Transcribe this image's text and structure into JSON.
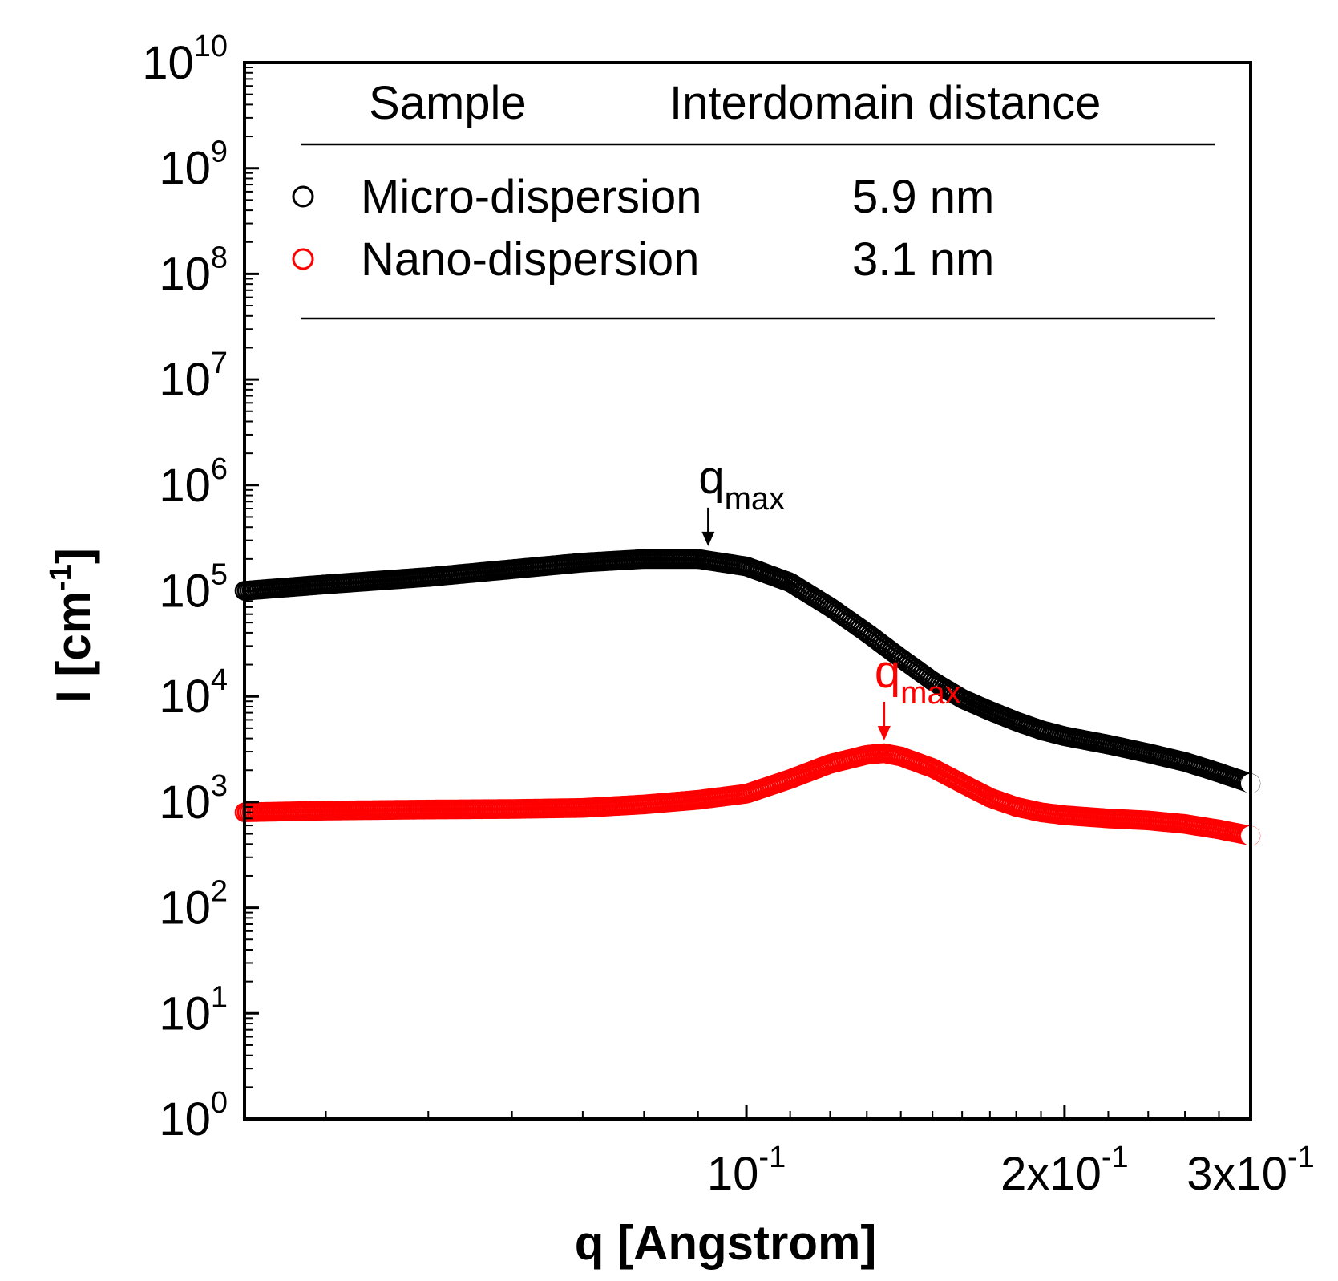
{
  "chart_data": {
    "type": "scatter",
    "xlabel": "q [Angstrom]",
    "ylabel_main": "I [cm",
    "ylabel_sup": "-1",
    "ylabel_close": "]",
    "xscale": "log",
    "yscale": "log",
    "xlim": [
      0.0335,
      0.3
    ],
    "ylim": [
      1,
      10000000000
    ],
    "x_ticks": [
      {
        "value": 0.1,
        "mantissa": "",
        "base": "10",
        "exp": "-1"
      },
      {
        "value": 0.2,
        "mantissa": "2x",
        "base": "10",
        "exp": "-1"
      },
      {
        "value": 0.3,
        "mantissa": "3x",
        "base": "10",
        "exp": "-1"
      }
    ],
    "y_ticks": [
      {
        "value": 1,
        "base": "10",
        "exp": "0"
      },
      {
        "value": 10,
        "base": "10",
        "exp": "1"
      },
      {
        "value": 100,
        "base": "10",
        "exp": "2"
      },
      {
        "value": 1000,
        "base": "10",
        "exp": "3"
      },
      {
        "value": 10000,
        "base": "10",
        "exp": "4"
      },
      {
        "value": 100000,
        "base": "10",
        "exp": "5"
      },
      {
        "value": 1000000,
        "base": "10",
        "exp": "6"
      },
      {
        "value": 10000000,
        "base": "10",
        "exp": "7"
      },
      {
        "value": 100000000,
        "base": "10",
        "exp": "8"
      },
      {
        "value": 1000000000,
        "base": "10",
        "exp": "9"
      },
      {
        "value": 10000000000,
        "base": "10",
        "exp": "10"
      }
    ],
    "legend": {
      "position": "top",
      "header_sample": "Sample",
      "header_distance": "Interdomain distance"
    },
    "series": [
      {
        "name": "Micro-dispersion",
        "distance": "5.9 nm",
        "color": "#000000",
        "marker": "open-circle",
        "points": [
          [
            0.0335,
            100000
          ],
          [
            0.04,
            115000
          ],
          [
            0.05,
            135000
          ],
          [
            0.06,
            160000
          ],
          [
            0.07,
            185000
          ],
          [
            0.08,
            200000
          ],
          [
            0.09,
            200000
          ],
          [
            0.1,
            170000
          ],
          [
            0.11,
            120000
          ],
          [
            0.12,
            70000
          ],
          [
            0.13,
            40000
          ],
          [
            0.14,
            23000
          ],
          [
            0.15,
            14000
          ],
          [
            0.16,
            9500
          ],
          [
            0.17,
            7300
          ],
          [
            0.18,
            5800
          ],
          [
            0.19,
            4800
          ],
          [
            0.2,
            4200
          ],
          [
            0.22,
            3500
          ],
          [
            0.24,
            2900
          ],
          [
            0.26,
            2400
          ],
          [
            0.28,
            1900
          ],
          [
            0.3,
            1500
          ]
        ],
        "annotation": {
          "x": 0.092,
          "y": 200000,
          "label": "q",
          "sub": "max"
        }
      },
      {
        "name": "Nano-dispersion",
        "distance": "3.1 nm",
        "color": "#ff0000",
        "marker": "open-circle",
        "points": [
          [
            0.0335,
            800
          ],
          [
            0.04,
            830
          ],
          [
            0.05,
            850
          ],
          [
            0.06,
            860
          ],
          [
            0.07,
            880
          ],
          [
            0.08,
            950
          ],
          [
            0.09,
            1050
          ],
          [
            0.1,
            1200
          ],
          [
            0.11,
            1650
          ],
          [
            0.12,
            2300
          ],
          [
            0.13,
            2800
          ],
          [
            0.135,
            2900
          ],
          [
            0.14,
            2700
          ],
          [
            0.15,
            2100
          ],
          [
            0.16,
            1500
          ],
          [
            0.17,
            1100
          ],
          [
            0.18,
            900
          ],
          [
            0.19,
            800
          ],
          [
            0.2,
            750
          ],
          [
            0.22,
            700
          ],
          [
            0.24,
            670
          ],
          [
            0.26,
            620
          ],
          [
            0.28,
            550
          ],
          [
            0.3,
            480
          ]
        ],
        "annotation": {
          "x": 0.135,
          "y": 2900,
          "label": "q",
          "sub": "max"
        }
      }
    ]
  }
}
